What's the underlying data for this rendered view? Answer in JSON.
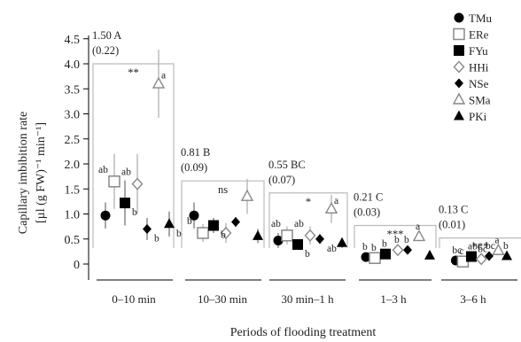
{
  "chart_data": {
    "type": "scatter",
    "xlabel": "Periods of flooding treatment",
    "ylabel_line1": "Capillary imbibition rate",
    "ylabel_line2": "[µl (g FW)⁻¹ min⁻¹]",
    "ylim": [
      0,
      4.5
    ],
    "yticks": [
      "0",
      "0.5",
      "1.0",
      "1.5",
      "2.0",
      "2.5",
      "3.0",
      "3.5",
      "4.0",
      "4.5"
    ],
    "categories": [
      "0–10 min",
      "10–30 min",
      "30 min–1 h",
      "1–3 h",
      "3–6 h"
    ],
    "series": [
      {
        "name": "TMu",
        "color": "#000000",
        "marker": "circle-filled"
      },
      {
        "name": "ERe",
        "color": "#888888",
        "marker": "square-open"
      },
      {
        "name": "FYu",
        "color": "#000000",
        "marker": "square-filled"
      },
      {
        "name": "HHi",
        "color": "#888888",
        "marker": "diamond-open"
      },
      {
        "name": "NSe",
        "color": "#000000",
        "marker": "diamond-filled"
      },
      {
        "name": "SMa",
        "color": "#888888",
        "marker": "triangle-open"
      },
      {
        "name": "PKi",
        "color": "#000000",
        "marker": "triangle-filled"
      }
    ],
    "values": [
      [
        0.97,
        1.65,
        1.22,
        1.6,
        0.7,
        3.6,
        0.8
      ],
      [
        0.97,
        0.62,
        0.77,
        0.62,
        0.84,
        1.35,
        0.56
      ],
      [
        0.47,
        0.57,
        0.39,
        0.57,
        0.5,
        1.1,
        0.42
      ],
      [
        0.14,
        0.12,
        0.2,
        0.28,
        0.28,
        0.55,
        0.17
      ],
      [
        0.07,
        0.05,
        0.15,
        0.1,
        0.16,
        0.27,
        0.16
      ]
    ],
    "errors": [
      [
        0.26,
        0.55,
        0.45,
        0.6,
        0.22,
        0.68,
        0.25
      ],
      [
        0.26,
        0.18,
        0.15,
        0.2,
        0.1,
        0.35,
        0.14
      ],
      [
        0.15,
        0.18,
        0.1,
        0.18,
        0.1,
        0.28,
        0.1
      ],
      [
        0.05,
        0.05,
        0.06,
        0.06,
        0.04,
        0.1,
        0.05
      ],
      [
        0.04,
        0.03,
        0.04,
        0.03,
        0.04,
        0.08,
        0.04
      ]
    ],
    "letters": [
      [
        "",
        "ab",
        "b",
        "ab",
        "b",
        "a",
        "b"
      ],
      [
        "",
        "b",
        "b",
        "",
        "",
        "",
        ""
      ],
      [
        "",
        "ab",
        "b",
        "ab",
        "ab",
        "a",
        ""
      ],
      [
        "b",
        "b",
        "b",
        "b",
        "b",
        "a",
        ""
      ],
      [
        "bc",
        "c",
        "abc",
        "bc",
        "bc",
        "a",
        "b"
      ]
    ],
    "group_means": [
      "1.50 A",
      "0.81 B",
      "0.55 BC",
      "0.21 C",
      "0.13 C"
    ],
    "group_se": [
      "(0.22)",
      "(0.09)",
      "(0.07)",
      "(0.03)",
      "(0.01)"
    ],
    "group_significance": [
      "**",
      "ns",
      "*",
      "***",
      "***"
    ],
    "box_top": [
      4.0,
      1.66,
      1.42,
      0.77,
      0.52
    ],
    "legend_position": "top-right",
    "grid": false
  }
}
